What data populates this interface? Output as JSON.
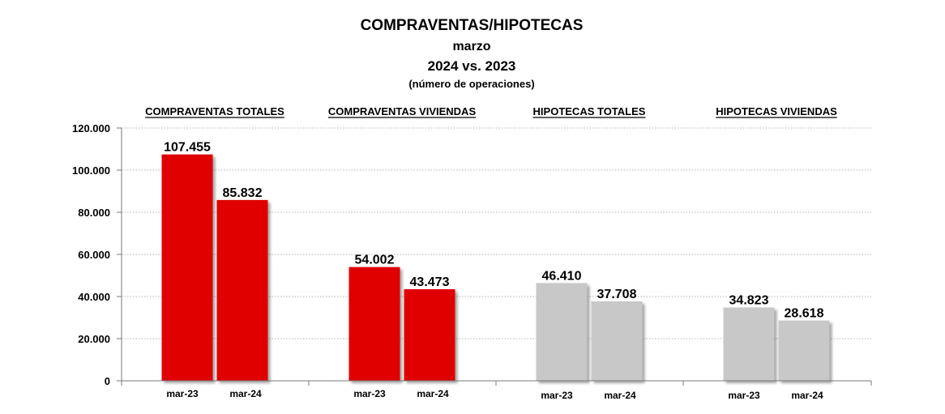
{
  "chart_data": {
    "type": "bar",
    "title": "COMPRAVENTAS/HIPOTECAS",
    "subtitle_lines": [
      "marzo",
      "2024 vs. 2023",
      "(número de operaciones)"
    ],
    "groups": [
      {
        "label": "COMPRAVENTAS TOTALES",
        "color": "#e00000"
      },
      {
        "label": "COMPRAVENTAS VIVIENDAS",
        "color": "#e00000"
      },
      {
        "label": "HIPOTECAS TOTALES",
        "color": "#c8c8c8"
      },
      {
        "label": "HIPOTECAS VIVIENDAS",
        "color": "#c8c8c8"
      }
    ],
    "series": [
      {
        "name": "mar-23",
        "values": [
          107455,
          54002,
          46410,
          34823
        ]
      },
      {
        "name": "mar-24",
        "values": [
          85832,
          43473,
          37708,
          28618
        ]
      }
    ],
    "value_labels": [
      [
        "107.455",
        "54.002",
        "46.410",
        "34.823"
      ],
      [
        "85.832",
        "43.473",
        "37.708",
        "28.618"
      ]
    ],
    "ylim": [
      0,
      120000
    ],
    "yticks": [
      0,
      20000,
      40000,
      60000,
      80000,
      100000,
      120000
    ],
    "ytick_labels": [
      "0",
      "20.000",
      "40.000",
      "60.000",
      "80.000",
      "100.000",
      "120.000"
    ],
    "grid": true,
    "grid_style": "dotted"
  }
}
